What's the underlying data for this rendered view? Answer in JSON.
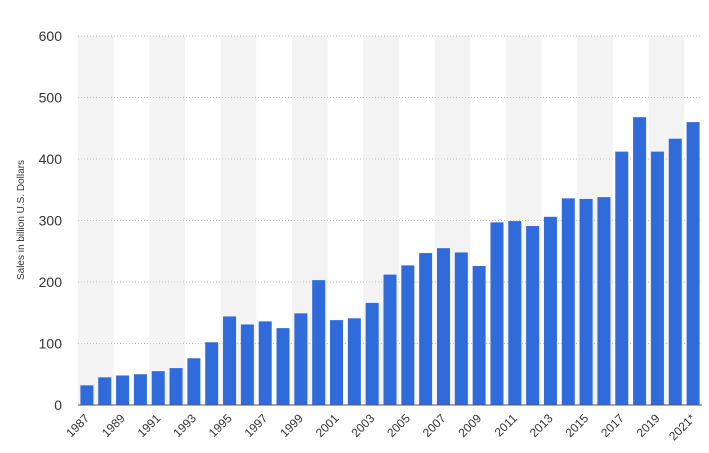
{
  "chart_data": {
    "type": "bar",
    "title": "",
    "xlabel": "",
    "ylabel": "Sales in billion U.S. Dollars",
    "ylim": [
      0,
      600
    ],
    "yticks": [
      0,
      100,
      200,
      300,
      400,
      500,
      600
    ],
    "grid": true,
    "legend": "none",
    "colors": {
      "bar": "#2f6bdb",
      "grid": "#bdbdbd",
      "band": "#f3f3f3",
      "axis": "#555555"
    },
    "categories": [
      "1987",
      "1988",
      "1989",
      "1990",
      "1991",
      "1992",
      "1993",
      "1994",
      "1995",
      "1996",
      "1997",
      "1998",
      "1999",
      "2000",
      "2001",
      "2002",
      "2003",
      "2004",
      "2005",
      "2006",
      "2007",
      "2008",
      "2009",
      "2010",
      "2011",
      "2012",
      "2013",
      "2014",
      "2015",
      "2016",
      "2017",
      "2018",
      "2019",
      "2020",
      "2021*"
    ],
    "category_labels": [
      "1987",
      "",
      "1989",
      "",
      "1991",
      "",
      "1993",
      "",
      "1995",
      "",
      "1997",
      "",
      "1999",
      "",
      "2001",
      "",
      "2003",
      "",
      "2005",
      "",
      "2007",
      "",
      "2009",
      "",
      "2011",
      "",
      "2013",
      "",
      "2015",
      "",
      "2017",
      "",
      "2019",
      "",
      "2021*"
    ],
    "values": [
      32,
      45,
      48,
      50,
      55,
      60,
      76,
      102,
      144,
      131,
      136,
      125,
      149,
      203,
      138,
      141,
      166,
      212,
      227,
      247,
      255,
      248,
      226,
      297,
      299,
      291,
      306,
      336,
      335,
      338,
      412,
      468,
      412,
      433,
      460
    ]
  }
}
